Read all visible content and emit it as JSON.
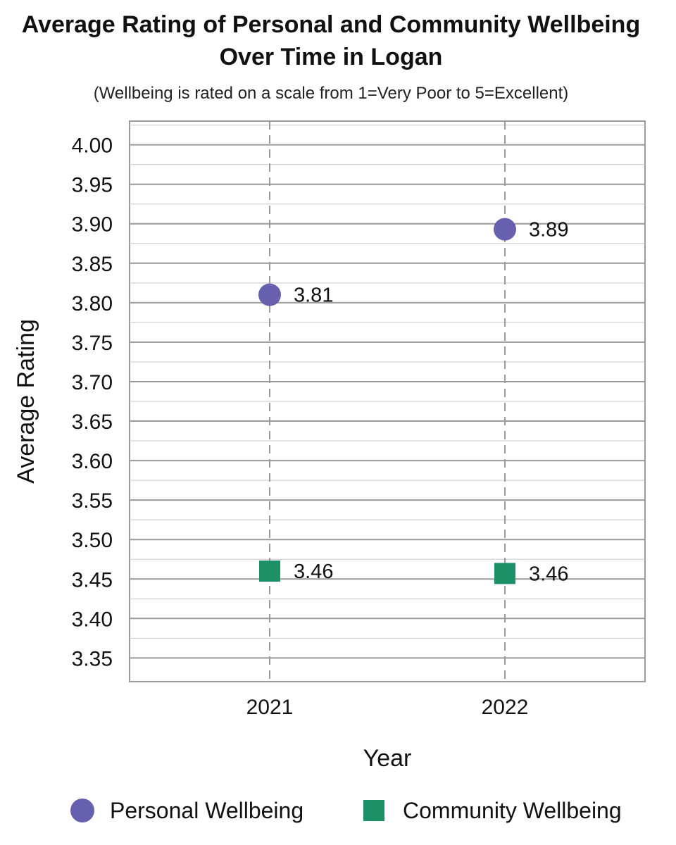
{
  "colors": {
    "personal": "#6660ae",
    "community": "#1c9168",
    "grid": "#9a9a9a",
    "axis_text": "#111111"
  },
  "chart_data": {
    "type": "scatter",
    "title": "Average Rating of Personal and Community Wellbeing Over Time in Logan",
    "title_lines": [
      "Average Rating of Personal and Community Wellbeing",
      "Over Time in Logan"
    ],
    "subtitle": "(Wellbeing is rated on a scale from 1=Very Poor to 5=Excellent)",
    "xlabel": "Year",
    "ylabel": "Average Rating",
    "categories": [
      "2021",
      "2022"
    ],
    "ylim": [
      3.32,
      4.03
    ],
    "yticks": [
      "4.00",
      "3.95",
      "3.90",
      "3.85",
      "3.80",
      "3.75",
      "3.70",
      "3.65",
      "3.60",
      "3.55",
      "3.50",
      "3.45",
      "3.40",
      "3.35"
    ],
    "grid": true,
    "legend_position": "bottom",
    "series": [
      {
        "name": "Personal Wellbeing",
        "marker": "circle",
        "values": [
          3.81,
          3.893
        ],
        "labels": [
          "3.81",
          "3.89"
        ]
      },
      {
        "name": "Community Wellbeing",
        "marker": "square",
        "values": [
          3.46,
          3.457
        ],
        "labels": [
          "3.46",
          "3.46"
        ]
      }
    ]
  }
}
